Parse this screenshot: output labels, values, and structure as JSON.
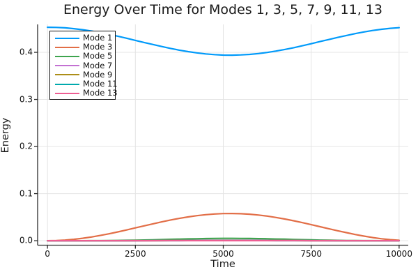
{
  "figure": {
    "background": "#ffffff",
    "axis_color": "#2b2b2b",
    "grid_color": "#e4e4e4",
    "tick_label_color": "#111111"
  },
  "chart_data": {
    "type": "line",
    "title": "Energy Over Time for Modes 1, 3, 5, 7, 9, 11, 13",
    "xlabel": "Time",
    "ylabel": "Energy",
    "xlim": [
      -280,
      10260
    ],
    "ylim": [
      -0.0095,
      0.4593
    ],
    "grid": true,
    "legend_position": "top-left",
    "xticks": [
      0,
      2500,
      5000,
      7500,
      10000
    ],
    "xtick_labels": [
      "0",
      "2500",
      "5000",
      "7500",
      "10000"
    ],
    "yticks": [
      0.0,
      0.1,
      0.2,
      0.3,
      0.4
    ],
    "ytick_labels": [
      "0.0",
      "0.1",
      "0.2",
      "0.3",
      "0.4"
    ],
    "x": [
      0,
      250,
      500,
      750,
      1000,
      1250,
      1500,
      1750,
      2000,
      2250,
      2500,
      2750,
      3000,
      3250,
      3500,
      3750,
      4000,
      4250,
      4500,
      4750,
      5000,
      5250,
      5500,
      5750,
      6000,
      6250,
      6500,
      6750,
      7000,
      7250,
      7500,
      7750,
      8000,
      8250,
      8500,
      8750,
      9000,
      9250,
      9500,
      9750,
      10000
    ],
    "series": [
      {
        "name": "Mode 1",
        "color": "#009AFA",
        "values": [
          0.4533,
          0.453,
          0.452,
          0.4503,
          0.4481,
          0.4452,
          0.4419,
          0.4382,
          0.4342,
          0.4299,
          0.4254,
          0.421,
          0.4166,
          0.4123,
          0.4083,
          0.4047,
          0.4015,
          0.3988,
          0.3966,
          0.3951,
          0.3942,
          0.394,
          0.3945,
          0.3956,
          0.3974,
          0.3998,
          0.4027,
          0.4061,
          0.4099,
          0.414,
          0.4183,
          0.4228,
          0.4272,
          0.4316,
          0.4358,
          0.4398,
          0.4433,
          0.4464,
          0.449,
          0.451,
          0.4524
        ]
      },
      {
        "name": "Mode 3",
        "color": "#E26E47",
        "values": [
          0.0,
          0.0003,
          0.0013,
          0.0029,
          0.0051,
          0.0079,
          0.0111,
          0.0147,
          0.0187,
          0.0228,
          0.0272,
          0.0315,
          0.0358,
          0.04,
          0.0439,
          0.0474,
          0.0505,
          0.0532,
          0.0553,
          0.0567,
          0.0576,
          0.0578,
          0.0573,
          0.0562,
          0.0545,
          0.0522,
          0.0493,
          0.046,
          0.0423,
          0.0383,
          0.0341,
          0.0298,
          0.0254,
          0.0211,
          0.0171,
          0.0132,
          0.0097,
          0.0067,
          0.0042,
          0.0022,
          0.0008
        ]
      },
      {
        "name": "Mode 5",
        "color": "#3EA44E",
        "values": [
          0.0,
          0.0,
          0.0,
          0.0,
          0.0,
          0.0001,
          0.0002,
          0.0003,
          0.0005,
          0.0008,
          0.0011,
          0.0015,
          0.0019,
          0.0024,
          0.0029,
          0.0034,
          0.0038,
          0.0042,
          0.0046,
          0.0048,
          0.005,
          0.005,
          0.0049,
          0.0047,
          0.0044,
          0.0041,
          0.0036,
          0.0032,
          0.0027,
          0.0022,
          0.0017,
          0.0013,
          0.001,
          0.0007,
          0.0004,
          0.0003,
          0.0001,
          0.0001,
          0.0,
          0.0,
          0.0
        ]
      },
      {
        "name": "Mode 7",
        "color": "#C371D2",
        "values": [
          0.0,
          0.0,
          0.0,
          0.0,
          0.0,
          0.0,
          0.0,
          0.0,
          0.0,
          0.0001,
          0.0001,
          0.0002,
          0.0003,
          0.0004,
          0.0005,
          0.0007,
          0.0008,
          0.0009,
          0.001,
          0.0011,
          0.0012,
          0.0012,
          0.0012,
          0.0011,
          0.001,
          0.0009,
          0.0007,
          0.0006,
          0.0005,
          0.0003,
          0.0002,
          0.0002,
          0.0001,
          0.0001,
          0.0,
          0.0,
          0.0,
          0.0,
          0.0,
          0.0,
          0.0
        ]
      },
      {
        "name": "Mode 9",
        "color": "#AC8E18",
        "values": [
          0.0,
          0.0,
          0.0,
          0.0,
          0.0,
          0.0,
          0.0,
          0.0,
          0.0,
          0.0,
          0.0001,
          0.0001,
          0.0002,
          0.0002,
          0.0003,
          0.0004,
          0.0005,
          0.0005,
          0.0006,
          0.0007,
          0.0007,
          0.0007,
          0.0007,
          0.0006,
          0.0006,
          0.0005,
          0.0004,
          0.0004,
          0.0003,
          0.0002,
          0.0001,
          0.0001,
          0.0001,
          0.0,
          0.0,
          0.0,
          0.0,
          0.0,
          0.0,
          0.0,
          0.0
        ]
      },
      {
        "name": "Mode 11",
        "color": "#00A9AD",
        "values": [
          0.0,
          0.0,
          0.0,
          0.0,
          0.0,
          0.0,
          0.0,
          0.0,
          0.0,
          0.0,
          0.0,
          0.0001,
          0.0001,
          0.0001,
          0.0002,
          0.0002,
          0.0003,
          0.0003,
          0.0003,
          0.0004,
          0.0004,
          0.0004,
          0.0004,
          0.0004,
          0.0003,
          0.0003,
          0.0002,
          0.0002,
          0.0002,
          0.0001,
          0.0001,
          0.0001,
          0.0,
          0.0,
          0.0,
          0.0,
          0.0,
          0.0,
          0.0,
          0.0,
          0.0
        ]
      },
      {
        "name": "Mode 13",
        "color": "#ED5E93",
        "values": [
          0.0,
          0.0,
          0.0,
          0.0,
          0.0,
          0.0,
          0.0,
          0.0,
          0.0,
          0.0,
          0.0,
          0.0,
          0.0,
          0.0001,
          0.0001,
          0.0001,
          0.0001,
          0.0002,
          0.0002,
          0.0002,
          0.0002,
          0.0002,
          0.0002,
          0.0002,
          0.0002,
          0.0001,
          0.0001,
          0.0001,
          0.0001,
          0.0001,
          0.0,
          0.0,
          0.0,
          0.0,
          0.0,
          0.0,
          0.0,
          0.0,
          0.0,
          0.0,
          0.0
        ]
      }
    ]
  }
}
